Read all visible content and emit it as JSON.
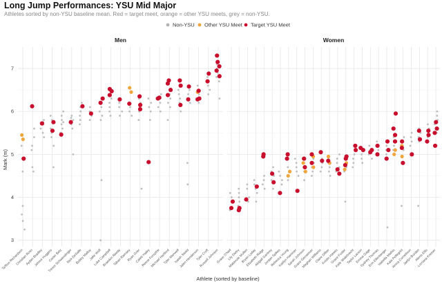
{
  "title": "Long Jump Performances: YSU Mid Major",
  "subtitle": "Athletes sorted by non-YSU baseline mean. Red = target meet, orange = other YSU meets, grey = non-YSU.",
  "legend": [
    {
      "label": "Non-YSU",
      "color": "#b3b3b3"
    },
    {
      "label": "Other YSU Meet",
      "color": "#f0a63c"
    },
    {
      "label": "Target YSU Meet",
      "color": "#c8102e"
    }
  ],
  "chart_data": {
    "type": "scatter",
    "ylabel": "Mark (m)",
    "xlabel": "Athlete (sorted by baseline)",
    "ylim": [
      2.85,
      7.5
    ],
    "yticks": [
      3,
      4,
      5,
      6,
      7
    ],
    "grid": true,
    "legend_position": "top",
    "facets": [
      {
        "title": "Men",
        "athletes": [
          "Ta'Ron Richardson",
          "Christian Ross",
          "Aydan Bradley",
          "Jehmir Huggins",
          "Carter Betz",
          "Trevor Schwendinger",
          "Nick DeSalle",
          "Bobby Malloy",
          "Jake Wolf",
          "Luke Campbell",
          "Braedon Reedy",
          "Tabari Ramsey",
          "Ryan Grier",
          "Caleb Haley",
          "Reese Forsythe",
          "Michael Hartford",
          "Tyler Maxwell",
          "Isaiah Steed",
          "Jalen Henderson",
          "Tyler Croft",
          "Russell Johnson"
        ],
        "non_ysu": [
          [
            3.6,
            3.25,
            3.8,
            3.45,
            4.6,
            4.9,
            5.2
          ],
          [
            4.6,
            4.7,
            5.1,
            5.2,
            5.4,
            5.6
          ],
          [
            5.4,
            5.5,
            5.6,
            5.7,
            5.75,
            5.8
          ],
          [
            4.7,
            5.2,
            5.4,
            5.5,
            5.6,
            5.8,
            5.9
          ],
          [
            5.5,
            5.6,
            5.7,
            5.75,
            5.8,
            5.9,
            6.0
          ],
          [
            5.0,
            5.6,
            5.7,
            5.8,
            5.85,
            5.9
          ],
          [
            5.7,
            5.8,
            5.9,
            6.0,
            6.1,
            6.2
          ],
          [
            5.8,
            5.9,
            5.95,
            6.0,
            6.1
          ],
          [
            3.0,
            4.4,
            5.8,
            5.9,
            6.0,
            6.1,
            6.2
          ],
          [
            5.9,
            6.0,
            6.1,
            6.2,
            6.3
          ],
          [
            5.9,
            6.0,
            6.1,
            6.2,
            6.25
          ],
          [
            5.9,
            6.0,
            6.1,
            6.15,
            6.2
          ],
          [
            4.2,
            5.8,
            6.0,
            6.1,
            6.2,
            6.3
          ],
          [
            5.8,
            6.0,
            6.1,
            6.2,
            6.3
          ],
          [
            6.0,
            6.1,
            6.2,
            6.3,
            6.4
          ],
          [
            5.8,
            6.1,
            6.2,
            6.3,
            6.4
          ],
          [
            6.0,
            6.2,
            6.3,
            6.4,
            6.5
          ],
          [
            4.3,
            4.8,
            6.2,
            6.3,
            6.4,
            6.5
          ],
          [
            6.2,
            6.3,
            6.4,
            6.5,
            6.6
          ],
          [
            6.4,
            6.5,
            6.6,
            6.7,
            6.8
          ],
          [
            6.3,
            6.7,
            6.8,
            6.9,
            7.0,
            7.1
          ]
        ],
        "other_ysu": [
          [
            5.45,
            5.35
          ],
          [],
          [],
          [],
          [],
          [],
          [],
          [],
          [],
          [],
          [],
          [
            6.55,
            6.45
          ],
          [],
          [],
          [],
          [],
          [],
          [],
          [
            6.45
          ],
          [],
          []
        ],
        "target_ysu": [
          [
            4.9
          ],
          [
            6.12
          ],
          [
            5.72
          ],
          [
            5.75,
            5.55
          ],
          [
            5.46
          ],
          [
            5.75
          ],
          [
            6.12
          ],
          [
            5.95
          ],
          [
            6.3,
            6.2
          ],
          [
            6.52,
            6.38,
            6.47
          ],
          [
            6.28
          ],
          [
            6.18
          ],
          [
            6.15,
            6.05,
            6.35
          ],
          [
            4.82
          ],
          [
            6.32,
            6.3
          ],
          [
            6.72,
            6.65,
            6.5,
            6.38
          ],
          [
            6.72,
            6.6,
            6.15
          ],
          [
            6.28,
            6.58
          ],
          [
            6.48,
            6.3,
            6.28
          ],
          [
            6.88,
            6.7
          ],
          [
            7.3,
            7.15,
            7.05,
            6.95,
            6.82
          ]
        ]
      },
      {
        "title": "Women",
        "athletes": [
          "Grace O'Neil",
          "Lily Dietry",
          "Makenzie Mullen",
          "Bryan Lyday",
          "Elizabeth Ridge",
          "Abigail Gantrey",
          "Jordan Spikes",
          "Rebecca Young",
          "Kaitlyn Hammer",
          "Sarah Johnson",
          "Grace Gensemer",
          "Meghan Williams",
          "Claire Dilber",
          "Kristin Hawes",
          "Grace Foster",
          "Kate Widebrecht",
          "Taylor Larson",
          "Emma Gage",
          "Sydney Thomas",
          "Erin Ellenberger",
          "Isabella Mathis",
          "Kaia Pellegrini",
          "Jenna Cornelison",
          "Jaelyn Burden",
          "Alexis Ellis",
          "Lorriana Kremer"
        ],
        "non_ysu": [
          [
            3.7,
            3.9,
            4.0,
            4.1
          ],
          [
            3.8,
            3.9,
            4.0,
            4.1,
            4.2
          ],
          [
            3.9,
            4.0,
            4.2,
            4.3
          ],
          [
            3.9,
            4.1,
            4.2,
            4.3,
            4.4
          ],
          [
            4.2,
            4.3,
            4.4,
            4.5
          ],
          [
            4.2,
            4.4,
            4.5,
            4.6,
            4.7
          ],
          [
            4.3,
            4.4,
            4.5,
            4.6
          ],
          [
            4.4,
            4.5,
            4.6,
            4.7
          ],
          [
            4.5,
            4.6,
            4.7,
            4.8,
            4.9
          ],
          [
            4.4,
            4.6,
            4.7,
            4.8
          ],
          [
            4.5,
            4.6,
            4.7,
            4.8,
            4.9
          ],
          [
            4.6,
            4.7,
            4.8,
            4.9
          ],
          [
            4.5,
            4.6,
            4.7,
            4.8,
            4.9
          ],
          [
            4.6,
            4.7,
            4.8,
            4.9,
            5.0
          ],
          [
            3.9,
            4.6,
            4.7,
            4.8,
            4.9
          ],
          [
            4.7,
            4.8,
            4.9,
            5.0
          ],
          [
            4.8,
            4.9,
            5.0,
            5.1
          ],
          [
            4.9,
            5.0,
            5.1,
            5.2
          ],
          [
            5.0,
            5.1,
            5.2,
            5.3
          ],
          [
            3.3,
            4.9,
            5.0,
            5.1,
            5.2
          ],
          [
            5.0,
            5.1,
            5.2,
            5.3,
            5.4
          ],
          [
            3.8,
            5.1,
            5.2,
            5.3,
            5.4
          ],
          [
            5.2,
            5.3,
            5.4,
            5.5
          ],
          [
            3.8,
            5.3,
            5.4,
            5.5,
            5.6
          ],
          [
            5.4,
            5.5,
            5.6,
            5.7
          ],
          [
            5.5,
            5.7,
            5.8,
            5.9,
            6.0
          ]
        ],
        "other_ysu": [
          [],
          [],
          [],
          [],
          [],
          [],
          [],
          [
            4.6,
            4.5
          ],
          [],
          [
            4.9,
            4.8,
            4.6
          ],
          [
            4.95,
            4.7
          ],
          [],
          [
            4.95,
            4.8
          ],
          [],
          [
            4.65,
            4.8
          ],
          [],
          [],
          [],
          [],
          [],
          [
            5.3,
            5.1,
            5.0
          ],
          [
            4.95,
            5.2
          ],
          [],
          [],
          [],
          []
        ],
        "target_ysu": [
          [
            3.75,
            3.9
          ],
          [
            3.75,
            3.7
          ],
          [
            3.95
          ],
          [
            4.25
          ],
          [
            4.95,
            5.0
          ],
          [
            4.55,
            4.35
          ],
          [
            4.1
          ],
          [
            5.0,
            4.9
          ],
          [
            4.15
          ],
          [
            4.9,
            4.7
          ],
          [
            5.0,
            4.8
          ],
          [
            4.85,
            5.05
          ],
          [
            4.85
          ],
          [
            4.65,
            4.55
          ],
          [
            4.95,
            4.75,
            4.9
          ],
          [
            5.1,
            5.2
          ],
          [
            5.15,
            5.1
          ],
          [
            5.1,
            5.05
          ],
          [
            5.2,
            5.0
          ],
          [
            5.3,
            5.1,
            4.9
          ],
          [
            5.95,
            5.6,
            5.45,
            5.3
          ],
          [
            5.15,
            5.3,
            4.8
          ],
          [
            5.0
          ],
          [
            5.55,
            5.35
          ],
          [
            5.3,
            5.55,
            5.45
          ],
          [
            5.75,
            5.6,
            5.5,
            5.2
          ]
        ]
      }
    ]
  }
}
